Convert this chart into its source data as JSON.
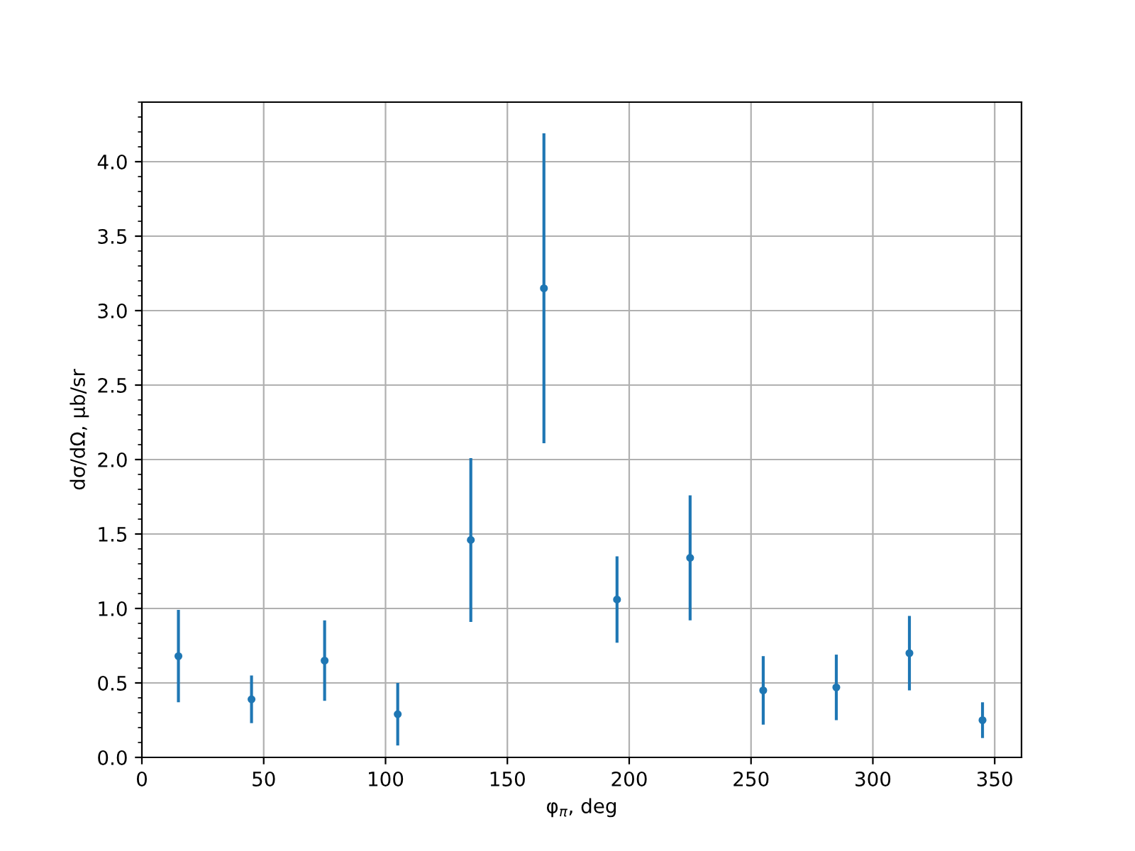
{
  "chart_data": {
    "type": "scatter",
    "xlabel": "φ$_{π}$, deg",
    "ylabel": "dσ/dΩ, μb/sr",
    "x": [
      15,
      45,
      75,
      105,
      135,
      165,
      195,
      225,
      255,
      285,
      315,
      345
    ],
    "series": [
      {
        "color": "#1f77b4",
        "values": [
          0.68,
          0.39,
          0.65,
          0.29,
          1.46,
          3.15,
          1.06,
          1.34,
          0.45,
          0.47,
          0.7,
          0.25
        ],
        "errors": [
          0.31,
          0.16,
          0.27,
          0.21,
          0.55,
          1.04,
          0.29,
          0.42,
          0.23,
          0.22,
          0.25,
          0.12
        ]
      }
    ],
    "xlim": [
      0,
      361
    ],
    "xticks": [
      0,
      50,
      100,
      150,
      200,
      250,
      300,
      350
    ],
    "ylim": [
      0,
      4.4
    ],
    "yticks": [
      {
        "value": 0,
        "label": "0.0"
      },
      0.5,
      {
        "value": 1,
        "label": "1.0"
      },
      1.5,
      {
        "value": 2,
        "label": "2.0"
      },
      2.5,
      {
        "value": 3,
        "label": "3.0"
      },
      3.5,
      {
        "value": 4,
        "label": "4.0"
      }
    ],
    "grid": true,
    "marker": "circle"
  }
}
